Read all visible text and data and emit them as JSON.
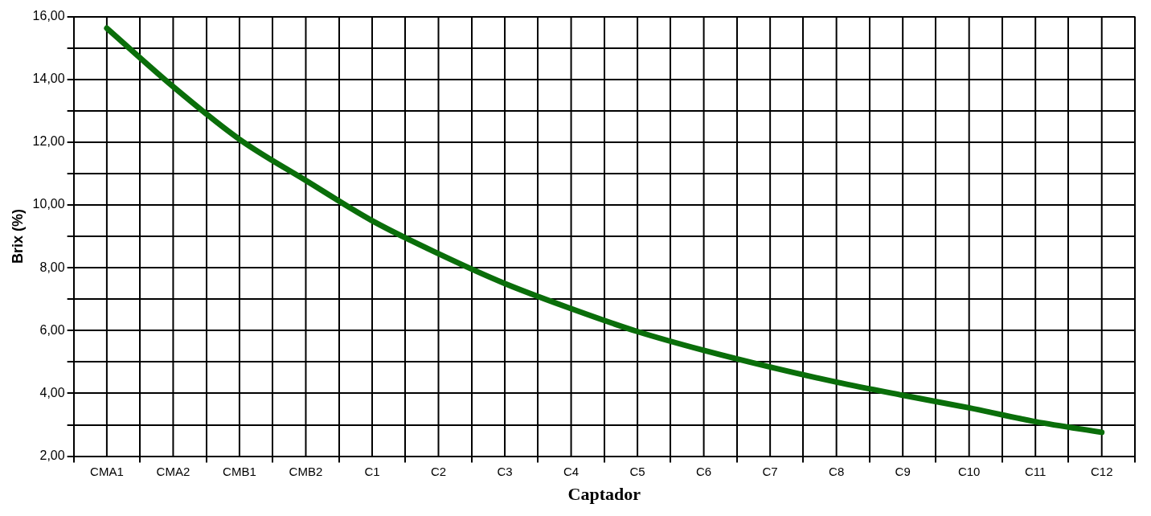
{
  "chart_data": {
    "type": "line",
    "xlabel": "Captador",
    "ylabel": "Brix (%)",
    "categories": [
      "CMA1",
      "CMA2",
      "CMB1",
      "CMB2",
      "C1",
      "C2",
      "C3",
      "C4",
      "C5",
      "C6",
      "C7",
      "C8",
      "C9",
      "C10",
      "C11",
      "C12"
    ],
    "series": [
      {
        "color": "#0a6e0a",
        "values": [
          15.63,
          13.77,
          12.09,
          10.78,
          9.5,
          8.45,
          7.5,
          6.7,
          5.97,
          5.37,
          4.84,
          4.36,
          3.94,
          3.54,
          3.1,
          2.76
        ]
      }
    ],
    "ylim": [
      2,
      16
    ],
    "yticks": [
      {
        "value": 2,
        "label": "2,00"
      },
      {
        "value": 3,
        "label": null
      },
      {
        "value": 4,
        "label": "4,00"
      },
      {
        "value": 5,
        "label": null
      },
      {
        "value": 6,
        "label": "6,00"
      },
      {
        "value": 7,
        "label": null
      },
      {
        "value": 8,
        "label": "8,00"
      },
      {
        "value": 9,
        "label": null
      },
      {
        "value": 10,
        "label": "10,00"
      },
      {
        "value": 11,
        "label": null
      },
      {
        "value": 12,
        "label": "12,00"
      },
      {
        "value": 13,
        "label": null
      },
      {
        "value": 14,
        "label": "14,00"
      },
      {
        "value": 15,
        "label": null
      },
      {
        "value": 16,
        "label": "16,00"
      }
    ],
    "grid": true,
    "legend": false,
    "marker": "none",
    "line_style": "solid"
  }
}
